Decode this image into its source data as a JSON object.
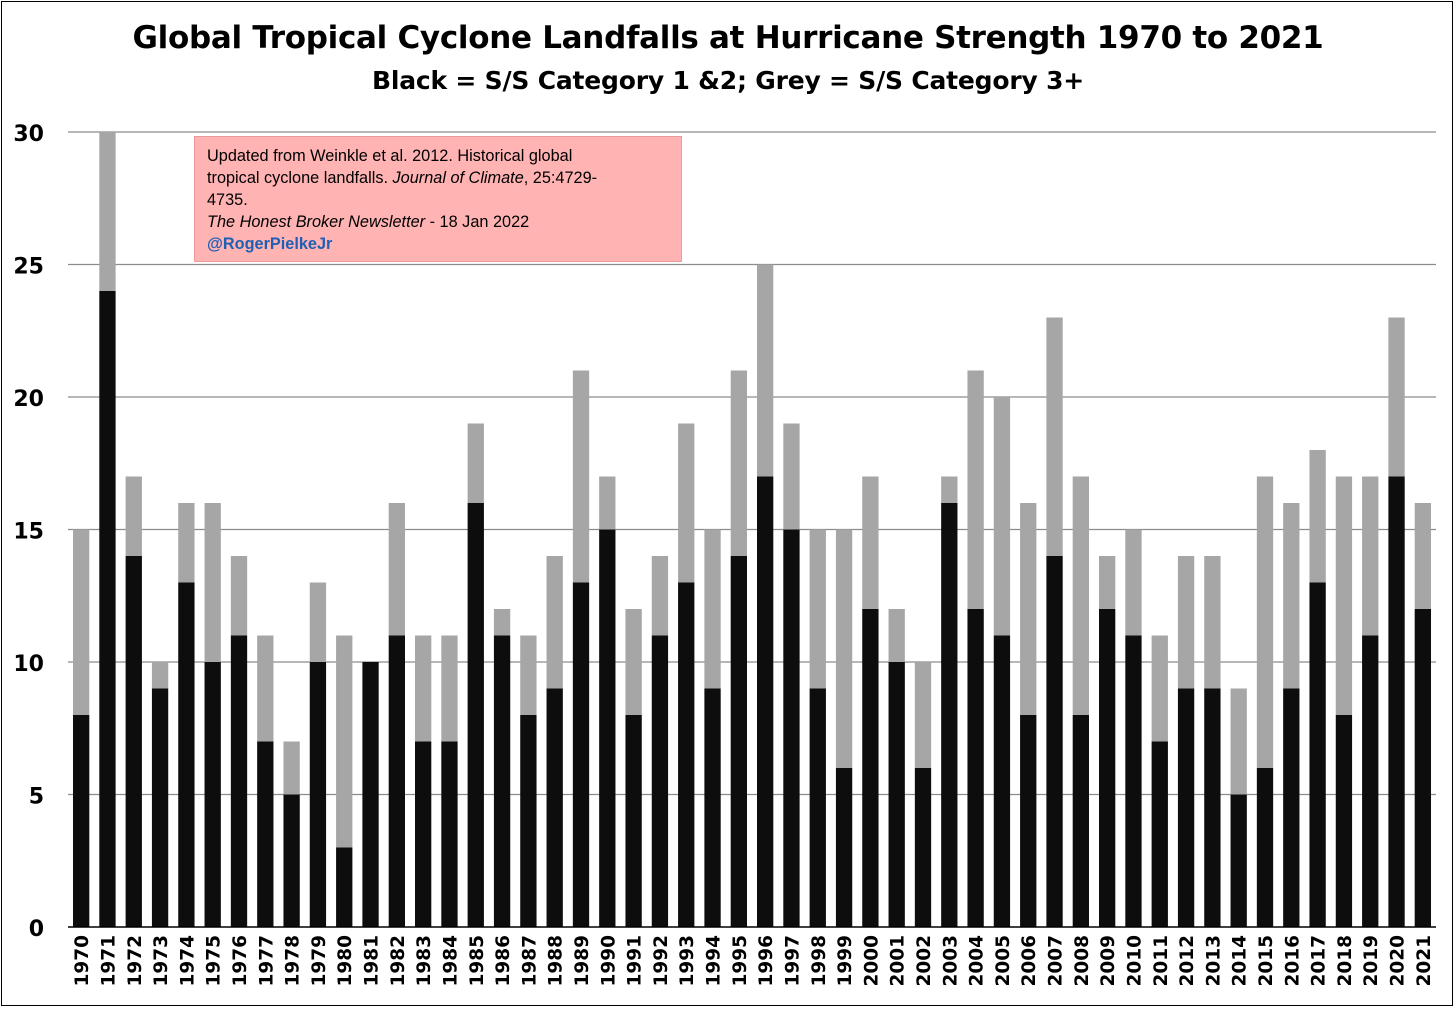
{
  "chart_data": {
    "type": "bar",
    "stacked": true,
    "title": "Global Tropical Cyclone Landfalls at Hurricane Strength 1970 to 2021",
    "subtitle": "Black = S/S Category 1 &2; Grey = S/S Category 3+",
    "xlabel": "",
    "ylabel": "",
    "ylim": [
      0,
      30
    ],
    "yticks": [
      "0",
      "5",
      "10",
      "15",
      "20",
      "25",
      "30"
    ],
    "grid": true,
    "categories": [
      "1970",
      "1971",
      "1972",
      "1973",
      "1974",
      "1975",
      "1976",
      "1977",
      "1978",
      "1979",
      "1980",
      "1981",
      "1982",
      "1983",
      "1984",
      "1985",
      "1986",
      "1987",
      "1988",
      "1989",
      "1990",
      "1991",
      "1992",
      "1993",
      "1994",
      "1995",
      "1996",
      "1997",
      "1998",
      "1999",
      "2000",
      "2001",
      "2002",
      "2003",
      "2004",
      "2005",
      "2006",
      "2007",
      "2008",
      "2009",
      "2010",
      "2011",
      "2012",
      "2013",
      "2014",
      "2015",
      "2016",
      "2017",
      "2018",
      "2019",
      "2020",
      "2021"
    ],
    "series": [
      {
        "name": "S/S Category 1 &2",
        "color": "#0d0d0d",
        "values": [
          8,
          24,
          14,
          9,
          13,
          10,
          11,
          7,
          5,
          10,
          3,
          10,
          11,
          7,
          7,
          16,
          11,
          8,
          9,
          13,
          15,
          8,
          11,
          13,
          9,
          14,
          17,
          15,
          9,
          6,
          12,
          10,
          6,
          16,
          12,
          11,
          8,
          14,
          8,
          12,
          11,
          7,
          9,
          9,
          5,
          6,
          9,
          13,
          8,
          11,
          17,
          12
        ]
      },
      {
        "name": "S/S Category 3+",
        "color": "#a6a6a6",
        "values": [
          7,
          6,
          3,
          1,
          3,
          6,
          3,
          4,
          2,
          3,
          8,
          0,
          5,
          4,
          4,
          3,
          1,
          3,
          5,
          8,
          2,
          4,
          3,
          6,
          6,
          7,
          8,
          4,
          6,
          9,
          5,
          2,
          4,
          1,
          9,
          9,
          8,
          9,
          9,
          2,
          4,
          4,
          5,
          5,
          4,
          11,
          7,
          5,
          9,
          6,
          6,
          4
        ]
      }
    ],
    "annotation": {
      "line1": "Updated from Weinkle et al. 2012. Historical global",
      "line2a": "tropical cyclone landfalls. ",
      "line2b": "Journal of Climate",
      "line2c": ", 25:4729-",
      "line3": "4735.",
      "line4a": "The Honest Broker Newsletter",
      "line4b": " - 18 Jan 2022",
      "line5": "@RogerPielkeJr"
    }
  }
}
